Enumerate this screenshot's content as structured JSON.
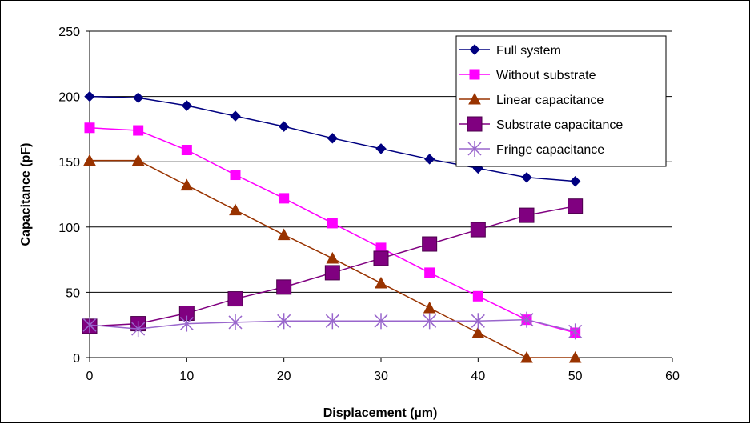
{
  "chart_data": {
    "type": "line",
    "xlabel": "Displacement (µm)",
    "ylabel": "Capacitance (pF)",
    "xlim": [
      0,
      60
    ],
    "ylim": [
      0,
      250
    ],
    "xticks": [
      "0",
      "10",
      "20",
      "30",
      "40",
      "50",
      "60"
    ],
    "yticks": [
      "0",
      "50",
      "100",
      "150",
      "200",
      "250"
    ],
    "grid": "horizontal major gridlines",
    "legend_position": "top-right",
    "x": [
      0,
      5,
      10,
      15,
      20,
      25,
      30,
      35,
      40,
      45,
      50
    ],
    "series": [
      {
        "name": "Full system",
        "color": "#000080",
        "marker": "diamond",
        "values": [
          200,
          199,
          193,
          185,
          177,
          168,
          160,
          152,
          145,
          138,
          135
        ]
      },
      {
        "name": "Without substrate",
        "color": "#FF00FF",
        "marker": "square",
        "values": [
          176,
          174,
          159,
          140,
          122,
          103,
          84,
          65,
          47,
          29,
          19
        ]
      },
      {
        "name": "Linear capacitance",
        "color": "#993300",
        "marker": "triangle",
        "values": [
          151,
          151,
          132,
          113,
          94,
          76,
          57,
          38,
          19,
          0,
          0
        ]
      },
      {
        "name": "Substrate capacitance",
        "color": "#800080",
        "marker": "big-square",
        "values": [
          24,
          26,
          34,
          45,
          54,
          65,
          76,
          87,
          98,
          109,
          116
        ]
      },
      {
        "name": "Fringe capacitance",
        "color": "#9966CC",
        "marker": "asterisk",
        "values": [
          25,
          22,
          26,
          27,
          28,
          28,
          28,
          28,
          28,
          29,
          20
        ]
      }
    ]
  }
}
